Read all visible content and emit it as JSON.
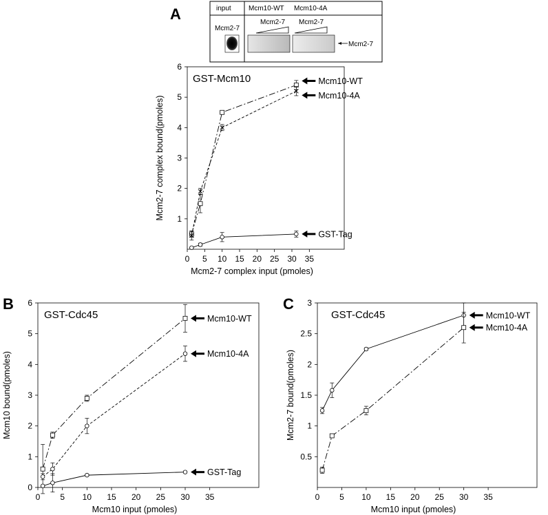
{
  "figure": {
    "panel_a": "A",
    "panel_b": "B",
    "panel_c": "C"
  },
  "blot": {
    "col_input": "input",
    "col_wt": "Mcm10-WT",
    "col_4a": "Mcm10-4A",
    "lane_label": "Mcm2-7",
    "wt_gradient_label": "Mcm2-7",
    "fa_gradient_label": "Mcm2-7",
    "arrow_label": "Mcm2-7"
  },
  "chart_data": [
    {
      "id": "A",
      "type": "line",
      "title": "GST-Mcm10",
      "xlabel": "Mcm2-7 complex input (pmoles)",
      "ylabel": "Mcm2-7 complex bound(pmoles)",
      "xlim": [
        0,
        45
      ],
      "ylim": [
        0,
        6
      ],
      "xticks": [
        0,
        5,
        10,
        15,
        20,
        25,
        30,
        35
      ],
      "yticks": [
        1,
        2,
        3,
        4,
        5,
        6
      ],
      "series": [
        {
          "name": "Mcm10-WT",
          "x": [
            1.25,
            3.75,
            10,
            31.25
          ],
          "y": [
            0.5,
            1.5,
            4.5,
            5.4
          ],
          "err": [
            0.1,
            0.3,
            0.05,
            0.15
          ],
          "marker": "square",
          "dash": "long-dot"
        },
        {
          "name": "Mcm10-4A",
          "x": [
            1.25,
            3.75,
            10,
            31.25
          ],
          "y": [
            0.45,
            1.9,
            4.0,
            5.2
          ],
          "err": [
            0.15,
            0.1,
            0.1,
            0.15
          ],
          "marker": "x",
          "dash": "dashed"
        },
        {
          "name": "GST-Tag",
          "x": [
            1.25,
            3.75,
            10,
            31.25
          ],
          "y": [
            0.05,
            0.15,
            0.4,
            0.5
          ],
          "err": [
            0.02,
            0.05,
            0.15,
            0.1
          ],
          "marker": "circle",
          "dash": "solid"
        }
      ]
    },
    {
      "id": "B",
      "type": "line",
      "title": "GST-Cdc45",
      "xlabel": "Mcm10 input (pmoles)",
      "ylabel": "Mcm10 bound(pmoles)",
      "xlim": [
        0,
        45
      ],
      "ylim": [
        0,
        6
      ],
      "xticks": [
        0,
        5,
        10,
        15,
        20,
        25,
        30,
        35
      ],
      "yticks": [
        0,
        1,
        2,
        3,
        4,
        5,
        6
      ],
      "series": [
        {
          "name": "Mcm10-WT",
          "x": [
            1,
            3,
            10,
            30
          ],
          "y": [
            0.6,
            1.7,
            2.9,
            5.5
          ],
          "err": [
            0.8,
            0.1,
            0.1,
            0.45
          ],
          "marker": "square",
          "dash": "long-dot"
        },
        {
          "name": "Mcm10-4A",
          "x": [
            1,
            3,
            10,
            30
          ],
          "y": [
            0.35,
            0.6,
            2.0,
            4.35
          ],
          "err": [
            0.1,
            0.2,
            0.25,
            0.25
          ],
          "marker": "circle",
          "dash": "dashed"
        },
        {
          "name": "GST-Tag",
          "x": [
            1,
            3,
            10,
            30
          ],
          "y": [
            0.05,
            0.15,
            0.4,
            0.5
          ],
          "err": [
            0.02,
            0.3,
            0.03,
            0.03
          ],
          "marker": "circle",
          "dash": "solid"
        }
      ]
    },
    {
      "id": "C",
      "type": "line",
      "title": "GST-Cdc45",
      "xlabel": "Mcm10 input (pmoles)",
      "ylabel": "Mcm2-7 bound(pmoles)",
      "xlim": [
        0,
        45
      ],
      "ylim": [
        0,
        3
      ],
      "xticks": [
        0,
        5,
        10,
        15,
        20,
        25,
        30,
        35
      ],
      "yticks": [
        0.5,
        1,
        1.5,
        2,
        2.5,
        3
      ],
      "series": [
        {
          "name": "Mcm10-WT",
          "x": [
            1,
            3,
            10,
            30
          ],
          "y": [
            1.25,
            1.58,
            2.25,
            2.8
          ],
          "err": [
            0.05,
            0.12,
            0.02,
            0.2
          ],
          "marker": "circle",
          "dash": "solid"
        },
        {
          "name": "Mcm10-4A",
          "x": [
            1,
            3,
            10,
            30
          ],
          "y": [
            0.28,
            0.84,
            1.25,
            2.6
          ],
          "err": [
            0.05,
            0.03,
            0.07,
            0.25
          ],
          "marker": "square",
          "dash": "long-dot"
        }
      ]
    }
  ]
}
